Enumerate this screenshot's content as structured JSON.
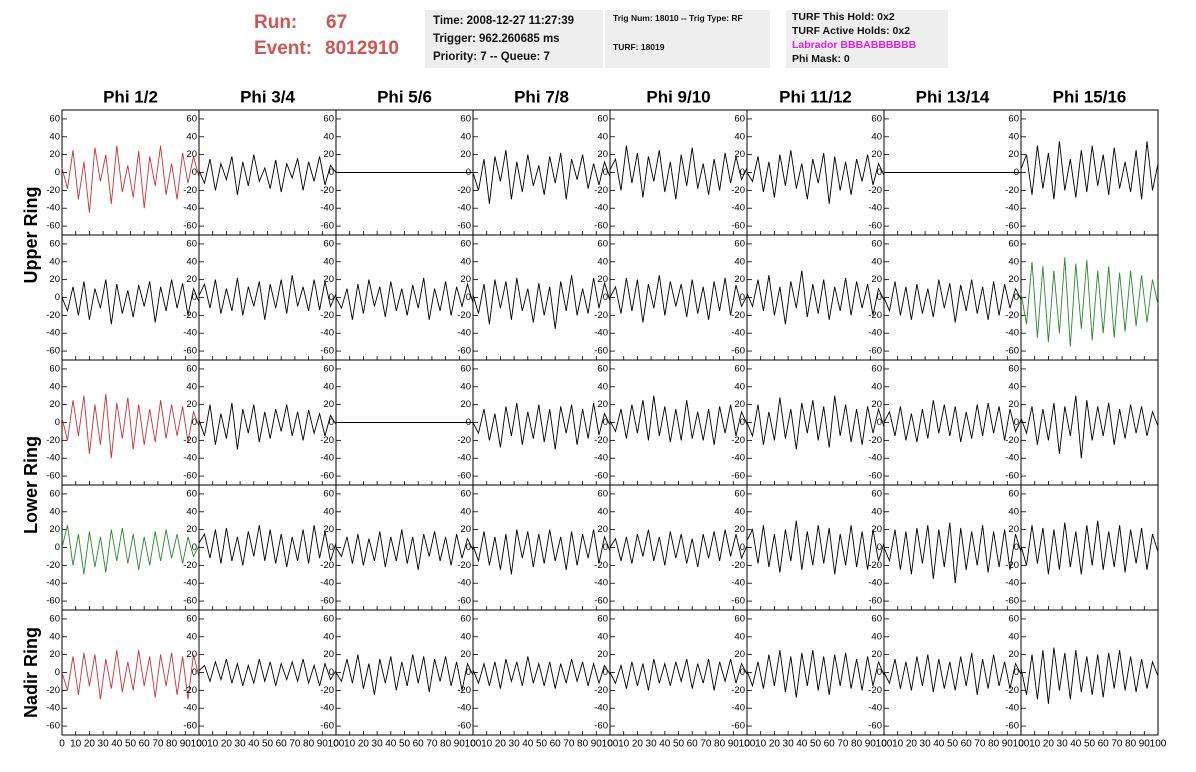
{
  "header": {
    "run_label": "Run:",
    "run": "67",
    "event_label": "Event:",
    "event": "8012910",
    "time": "Time: 2008-12-27 11:27:39",
    "trigger": "Trigger: 962.260685 ms",
    "priority": "Priority: 7 -- Queue: 7",
    "trig_num": "Trig Num: 18010 -- Trig Type: RF",
    "turf": "TURF: 18019",
    "turf_hold": "TURF This Hold: 0x2",
    "turf_active": "TURF Active Holds: 0x2",
    "labrador": "Labrador BBBABBBBBB",
    "phi_mask": "Phi Mask: 0"
  },
  "column_titles": [
    "Phi 1/2",
    "Phi 3/4",
    "Phi 5/6",
    "Phi 7/8",
    "Phi 9/10",
    "Phi 11/12",
    "Phi 13/14",
    "Phi 15/16"
  ],
  "row_titles": [
    "Upper Ring",
    "Lower Ring",
    "Nadir Ring"
  ],
  "axes": {
    "x": [
      0,
      4,
      8,
      12,
      16,
      20,
      24,
      28,
      32,
      36,
      40,
      44,
      48,
      52,
      56,
      60,
      64,
      68,
      72,
      76,
      80,
      84,
      88,
      92,
      96,
      100
    ],
    "xlim": [
      0,
      100
    ],
    "ylim": [
      -70,
      70
    ],
    "xticks": [
      0,
      10,
      20,
      30,
      40,
      50,
      60,
      70,
      80,
      90,
      100
    ],
    "yticks": [
      -60,
      -40,
      -20,
      0,
      20,
      40,
      60
    ]
  },
  "chart_data": [
    {
      "type": "line",
      "color": "#cc3333",
      "values": [
        5,
        -18,
        25,
        -30,
        12,
        -45,
        28,
        -10,
        20,
        -35,
        30,
        -22,
        8,
        -28,
        24,
        -40,
        18,
        -15,
        30,
        -25,
        10,
        -30,
        22,
        -12,
        18,
        -5
      ]
    },
    {
      "type": "line",
      "color": "#000000",
      "values": [
        2,
        -12,
        15,
        -20,
        10,
        -8,
        18,
        -25,
        12,
        -15,
        20,
        -10,
        5,
        -18,
        14,
        -22,
        10,
        -6,
        16,
        -20,
        12,
        -10,
        18,
        -14,
        8,
        0
      ]
    },
    {
      "type": "line",
      "color": "#000000",
      "values": [
        0,
        0,
        0,
        0,
        0,
        0,
        0,
        0,
        0,
        0,
        0,
        0,
        0,
        0,
        0,
        0,
        0,
        0,
        0,
        0,
        0,
        0,
        0,
        0,
        0,
        0
      ]
    },
    {
      "type": "line",
      "color": "#000000",
      "values": [
        0,
        -20,
        15,
        -35,
        18,
        -10,
        25,
        -30,
        12,
        -22,
        20,
        -15,
        8,
        -25,
        18,
        -12,
        22,
        -30,
        15,
        -8,
        20,
        -18,
        10,
        -14,
        12,
        -5
      ]
    },
    {
      "type": "line",
      "color": "#000000",
      "values": [
        3,
        15,
        -20,
        30,
        -12,
        22,
        -28,
        18,
        -10,
        25,
        -22,
        12,
        -30,
        20,
        -15,
        28,
        -18,
        10,
        -25,
        15,
        -20,
        22,
        -12,
        18,
        -8,
        5
      ]
    },
    {
      "type": "line",
      "color": "#000000",
      "values": [
        0,
        -10,
        18,
        -22,
        12,
        -28,
        20,
        -15,
        25,
        -18,
        10,
        -30,
        15,
        -12,
        22,
        -35,
        18,
        -20,
        12,
        -25,
        15,
        -10,
        20,
        -14,
        10,
        -3
      ]
    },
    {
      "type": "line",
      "color": "#000000",
      "values": [
        0,
        0,
        0,
        0,
        0,
        0,
        0,
        0,
        0,
        0,
        0,
        0,
        0,
        0,
        0,
        0,
        0,
        0,
        0,
        0,
        0,
        0,
        0,
        0,
        0,
        0
      ]
    },
    {
      "type": "line",
      "color": "#000000",
      "values": [
        4,
        20,
        -25,
        30,
        -18,
        22,
        -30,
        35,
        -20,
        15,
        -28,
        25,
        -22,
        30,
        -15,
        20,
        -25,
        28,
        -18,
        12,
        -22,
        25,
        -30,
        35,
        -20,
        10
      ]
    },
    {
      "type": "line",
      "color": "#000000",
      "values": [
        0,
        -15,
        12,
        -20,
        18,
        -25,
        10,
        -12,
        20,
        -30,
        15,
        -18,
        8,
        -22,
        14,
        -10,
        18,
        -28,
        12,
        -15,
        20,
        -12,
        16,
        -20,
        10,
        -5
      ]
    },
    {
      "type": "line",
      "color": "#000000",
      "values": [
        2,
        15,
        -12,
        20,
        -18,
        10,
        -15,
        22,
        -20,
        12,
        -10,
        18,
        -25,
        15,
        -12,
        20,
        -18,
        25,
        -10,
        12,
        -15,
        20,
        -14,
        18,
        -10,
        4
      ]
    },
    {
      "type": "line",
      "color": "#000000",
      "values": [
        0,
        -12,
        10,
        -25,
        15,
        -18,
        20,
        -10,
        12,
        -22,
        18,
        -15,
        10,
        -20,
        14,
        -12,
        22,
        -25,
        10,
        -15,
        18,
        -20,
        12,
        -10,
        15,
        -6
      ]
    },
    {
      "type": "line",
      "color": "#000000",
      "values": [
        3,
        -18,
        15,
        -30,
        20,
        -12,
        18,
        -25,
        22,
        -15,
        10,
        -28,
        16,
        -20,
        12,
        -35,
        18,
        -15,
        25,
        -20,
        10,
        -18,
        22,
        -12,
        16,
        -4
      ]
    },
    {
      "type": "line",
      "color": "#000000",
      "values": [
        0,
        12,
        -18,
        22,
        -15,
        20,
        -28,
        15,
        -12,
        25,
        -20,
        18,
        -10,
        15,
        -22,
        20,
        -18,
        12,
        -25,
        18,
        -15,
        22,
        -20,
        14,
        -10,
        2
      ]
    },
    {
      "type": "line",
      "color": "#000000",
      "values": [
        5,
        -10,
        20,
        -15,
        25,
        -20,
        12,
        -30,
        18,
        -12,
        30,
        -22,
        15,
        -18,
        20,
        -25,
        12,
        -15,
        22,
        -20,
        18,
        -12,
        15,
        -20,
        10,
        -3
      ]
    },
    {
      "type": "line",
      "color": "#000000",
      "values": [
        0,
        -15,
        18,
        -20,
        12,
        -25,
        15,
        -18,
        10,
        -22,
        20,
        -12,
        16,
        -28,
        14,
        -15,
        20,
        -18,
        12,
        -25,
        18,
        -20,
        15,
        -12,
        10,
        -2
      ]
    },
    {
      "type": "line",
      "color": "#2a8a2a",
      "values": [
        5,
        -30,
        40,
        -45,
        35,
        -50,
        30,
        -40,
        45,
        -55,
        38,
        -35,
        42,
        -48,
        30,
        -40,
        35,
        -45,
        28,
        -38,
        30,
        -32,
        25,
        -28,
        20,
        -8
      ]
    },
    {
      "type": "line",
      "color": "#cc3333",
      "values": [
        5,
        -20,
        25,
        -15,
        30,
        -35,
        20,
        -25,
        32,
        -40,
        22,
        -18,
        28,
        -30,
        20,
        -25,
        15,
        -22,
        25,
        -18,
        20,
        -15,
        18,
        -22,
        12,
        -4
      ]
    },
    {
      "type": "line",
      "color": "#000000",
      "values": [
        3,
        -15,
        20,
        -25,
        10,
        -18,
        22,
        -30,
        15,
        -12,
        20,
        -22,
        12,
        -18,
        15,
        -10,
        20,
        -15,
        12,
        -20,
        14,
        -12,
        10,
        -15,
        8,
        -2
      ]
    },
    {
      "type": "line",
      "color": "#000000",
      "values": [
        0,
        0,
        0,
        0,
        0,
        0,
        0,
        0,
        0,
        0,
        0,
        0,
        0,
        0,
        0,
        0,
        0,
        0,
        0,
        0,
        0,
        0,
        0,
        0,
        0,
        0
      ]
    },
    {
      "type": "line",
      "color": "#000000",
      "values": [
        0,
        -12,
        15,
        -20,
        10,
        -28,
        18,
        -15,
        22,
        -25,
        12,
        -18,
        20,
        -22,
        15,
        -30,
        18,
        -12,
        20,
        -25,
        15,
        -18,
        22,
        -14,
        10,
        -3
      ]
    },
    {
      "type": "line",
      "color": "#000000",
      "values": [
        2,
        -10,
        15,
        -18,
        20,
        -12,
        25,
        -20,
        30,
        -15,
        18,
        -22,
        15,
        -20,
        25,
        -18,
        12,
        -20,
        15,
        -25,
        18,
        -12,
        20,
        -15,
        12,
        -2
      ]
    },
    {
      "type": "line",
      "color": "#000000",
      "values": [
        0,
        -15,
        20,
        -25,
        12,
        -20,
        28,
        -18,
        15,
        -30,
        22,
        -12,
        25,
        -20,
        18,
        -28,
        30,
        -15,
        20,
        -22,
        15,
        -25,
        18,
        -12,
        15,
        -5
      ]
    },
    {
      "type": "line",
      "color": "#000000",
      "values": [
        0,
        12,
        -15,
        18,
        -20,
        10,
        -22,
        15,
        -18,
        25,
        -12,
        20,
        -15,
        18,
        -22,
        12,
        -18,
        20,
        -15,
        22,
        -12,
        18,
        -20,
        15,
        -10,
        3
      ]
    },
    {
      "type": "line",
      "color": "#000000",
      "values": [
        5,
        -12,
        18,
        -25,
        15,
        -20,
        22,
        -35,
        18,
        -15,
        30,
        -40,
        25,
        -20,
        18,
        -15,
        22,
        -25,
        15,
        -18,
        20,
        -12,
        18,
        -15,
        12,
        -4
      ]
    },
    {
      "type": "line",
      "color": "#2a8a2a",
      "values": [
        0,
        25,
        -20,
        15,
        -30,
        18,
        -22,
        12,
        -28,
        20,
        -15,
        22,
        -18,
        15,
        -25,
        12,
        -20,
        18,
        -15,
        20,
        -12,
        15,
        -18,
        12,
        -10,
        2
      ]
    },
    {
      "type": "line",
      "color": "#000000",
      "values": [
        5,
        15,
        -12,
        20,
        -18,
        22,
        -15,
        12,
        -20,
        18,
        -10,
        25,
        -15,
        20,
        -18,
        15,
        -22,
        12,
        -15,
        20,
        -18,
        25,
        -12,
        18,
        -15,
        5
      ]
    },
    {
      "type": "line",
      "color": "#000000",
      "values": [
        0,
        -10,
        12,
        -18,
        15,
        -20,
        10,
        -15,
        18,
        -22,
        12,
        -15,
        20,
        -18,
        12,
        -25,
        15,
        -10,
        18,
        -15,
        12,
        -20,
        15,
        -12,
        10,
        -3
      ]
    },
    {
      "type": "line",
      "color": "#000000",
      "values": [
        2,
        -15,
        18,
        -20,
        12,
        -25,
        15,
        -30,
        20,
        -12,
        18,
        -22,
        15,
        -18,
        20,
        -15,
        12,
        -25,
        18,
        -20,
        15,
        -12,
        20,
        -18,
        12,
        -4
      ]
    },
    {
      "type": "line",
      "color": "#000000",
      "values": [
        0,
        10,
        -15,
        12,
        -18,
        15,
        -10,
        20,
        -15,
        12,
        -20,
        18,
        -12,
        15,
        -18,
        10,
        -22,
        15,
        -12,
        18,
        -15,
        20,
        -10,
        15,
        -12,
        2
      ]
    },
    {
      "type": "line",
      "color": "#000000",
      "values": [
        8,
        20,
        -18,
        25,
        -22,
        15,
        -28,
        20,
        -15,
        30,
        -25,
        18,
        -20,
        25,
        -18,
        22,
        -30,
        15,
        -20,
        25,
        -22,
        18,
        -25,
        20,
        -15,
        5
      ]
    },
    {
      "type": "line",
      "color": "#000000",
      "values": [
        0,
        -15,
        20,
        -25,
        18,
        -30,
        22,
        -18,
        25,
        -35,
        20,
        -22,
        28,
        -40,
        22,
        -25,
        18,
        -20,
        25,
        -28,
        18,
        -22,
        20,
        -25,
        15,
        -5
      ]
    },
    {
      "type": "line",
      "color": "#000000",
      "values": [
        2,
        -20,
        25,
        -18,
        22,
        -30,
        20,
        -25,
        28,
        -22,
        18,
        -30,
        25,
        -20,
        30,
        -25,
        18,
        -22,
        25,
        -28,
        20,
        -18,
        22,
        -25,
        15,
        -5
      ]
    },
    {
      "type": "line",
      "color": "#cc3333",
      "values": [
        0,
        -20,
        18,
        -25,
        22,
        -15,
        20,
        -30,
        15,
        -18,
        25,
        -22,
        12,
        -20,
        25,
        -15,
        18,
        -28,
        20,
        -15,
        22,
        -25,
        18,
        -30,
        20,
        -5
      ]
    },
    {
      "type": "line",
      "color": "#000000",
      "values": [
        2,
        8,
        -10,
        12,
        -8,
        15,
        -12,
        10,
        -15,
        8,
        -12,
        15,
        -10,
        12,
        -15,
        10,
        -8,
        12,
        -10,
        15,
        -12,
        8,
        -15,
        10,
        -8,
        2
      ]
    },
    {
      "type": "line",
      "color": "#000000",
      "values": [
        0,
        -10,
        15,
        -12,
        20,
        -18,
        10,
        -25,
        15,
        -12,
        18,
        -20,
        12,
        -15,
        20,
        -12,
        18,
        -22,
        15,
        -10,
        18,
        -15,
        12,
        -20,
        10,
        -3
      ]
    },
    {
      "type": "line",
      "color": "#000000",
      "values": [
        3,
        -12,
        10,
        -15,
        12,
        -18,
        15,
        -10,
        12,
        -15,
        18,
        -12,
        10,
        -15,
        12,
        -18,
        10,
        -12,
        15,
        -10,
        12,
        -15,
        10,
        -12,
        8,
        -2
      ]
    },
    {
      "type": "line",
      "color": "#000000",
      "values": [
        0,
        -12,
        8,
        -18,
        12,
        -15,
        10,
        -20,
        15,
        -12,
        10,
        -15,
        12,
        -10,
        15,
        -18,
        10,
        -12,
        15,
        -20,
        12,
        -10,
        15,
        -12,
        10,
        -2
      ]
    },
    {
      "type": "line",
      "color": "#000000",
      "values": [
        2,
        -15,
        12,
        -18,
        20,
        -15,
        25,
        -22,
        18,
        -28,
        22,
        -15,
        25,
        -20,
        18,
        -25,
        20,
        -15,
        22,
        -18,
        15,
        -20,
        18,
        -15,
        12,
        -3
      ]
    },
    {
      "type": "line",
      "color": "#000000",
      "values": [
        0,
        -12,
        15,
        -18,
        12,
        -20,
        18,
        -15,
        20,
        -22,
        15,
        -18,
        12,
        -20,
        18,
        -15,
        22,
        -25,
        15,
        -18,
        20,
        -15,
        12,
        -18,
        10,
        -2
      ]
    },
    {
      "type": "line",
      "color": "#000000",
      "values": [
        5,
        -25,
        20,
        -30,
        25,
        -35,
        28,
        -20,
        22,
        -30,
        25,
        -22,
        18,
        -25,
        20,
        -28,
        22,
        -18,
        25,
        -20,
        18,
        -22,
        15,
        -18,
        12,
        -4
      ]
    }
  ]
}
